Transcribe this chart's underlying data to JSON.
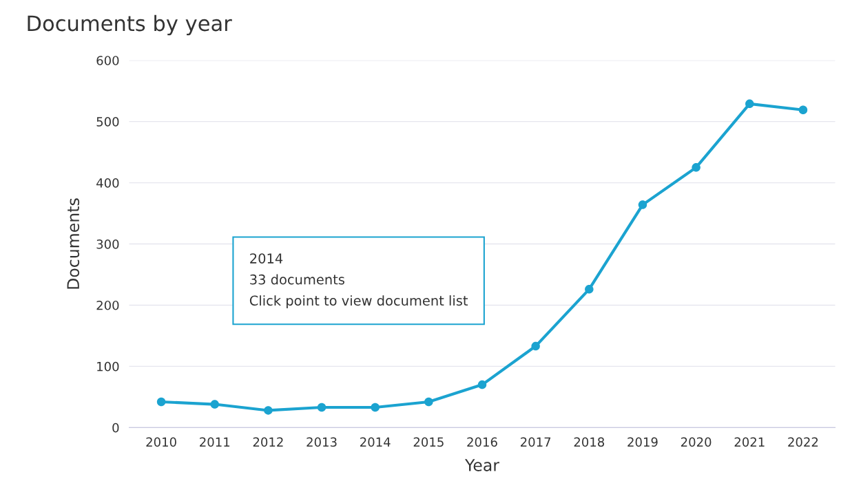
{
  "chart_data": {
    "type": "line",
    "title": "Documents by year",
    "xlabel": "Year",
    "ylabel": "Documents",
    "categories": [
      "2010",
      "2011",
      "2012",
      "2013",
      "2014",
      "2015",
      "2016",
      "2017",
      "2018",
      "2019",
      "2020",
      "2021",
      "2022"
    ],
    "series": [
      {
        "color": "#1ba3d0",
        "values": [
          42,
          38,
          28,
          33,
          33,
          42,
          70,
          133,
          226,
          364,
          425,
          529,
          519
        ]
      }
    ],
    "ylim": [
      0,
      600
    ],
    "yticks": [
      0,
      100,
      200,
      300,
      400,
      500,
      600
    ],
    "grid": "y",
    "marker": "circle",
    "line_style": "solid",
    "legend": false,
    "annotations": [
      "2014\n33 documents\nClick point to view document list"
    ]
  }
}
